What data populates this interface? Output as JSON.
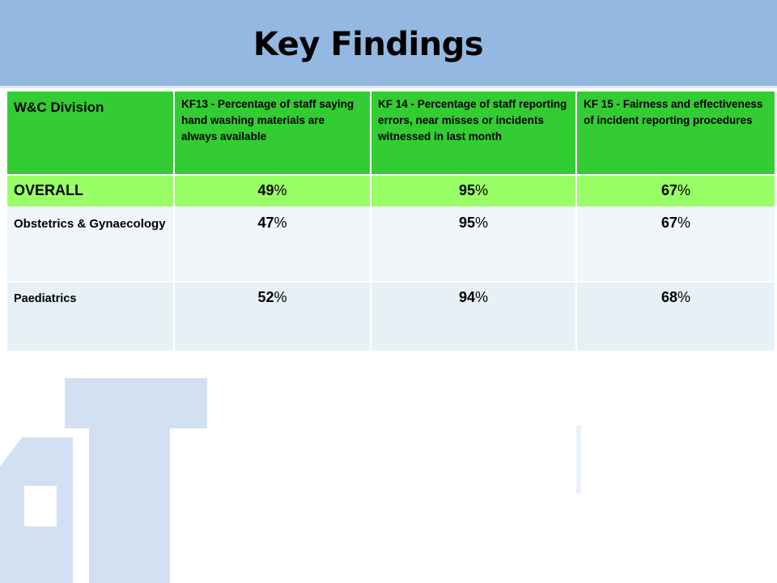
{
  "title": "Key Findings",
  "colors": {
    "banner": "#95b8e2",
    "header_green": "#33cc33",
    "overall_green": "#99ff66",
    "row_light": "#f1f6fa",
    "row_alt": "#e6f0f5",
    "watermark": "#c2d7ec"
  },
  "table": {
    "headers": [
      "W&C Division",
      "KF13 - Percentage of staff saying hand washing materials are always available",
      "KF 14 - Percentage of staff reporting errors, near misses or incidents witnessed in last month",
      "KF 15 - Fairness and effectiveness of incident reporting procedures"
    ],
    "rows": [
      {
        "label": "OVERALL",
        "values": [
          "49",
          "95",
          "67"
        ]
      },
      {
        "label": "Obstetrics & Gynaecology",
        "values": [
          "47",
          "95",
          "67"
        ]
      },
      {
        "label": "Paediatrics",
        "values": [
          "52",
          "94",
          "68"
        ]
      }
    ],
    "unit": "%"
  },
  "watermark_icon": "trust-logo-watermark"
}
